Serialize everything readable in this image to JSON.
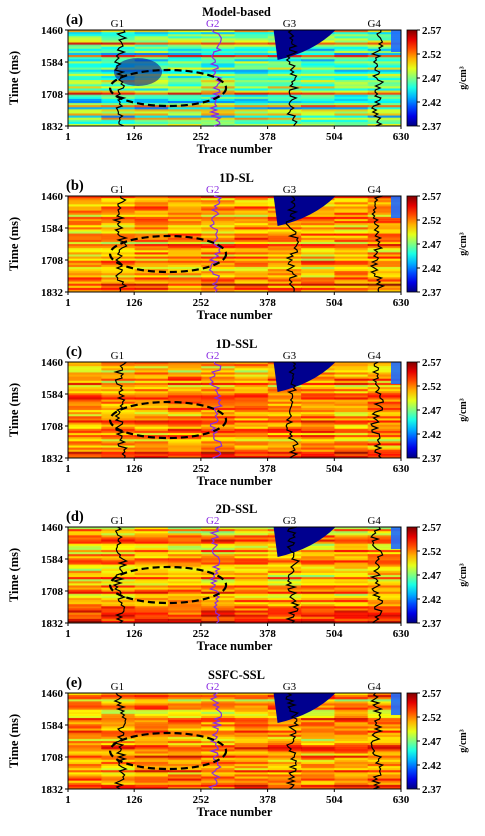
{
  "units": "g/cm³",
  "x_axis": {
    "label": "Trace number",
    "ticks": [
      "1",
      "126",
      "252",
      "378",
      "504",
      "630"
    ],
    "range": [
      1,
      630
    ]
  },
  "y_axis": {
    "label": "Time (ms)",
    "ticks": [
      "1460",
      "1584",
      "1708",
      "1832"
    ],
    "range": [
      1460,
      1832
    ]
  },
  "colorbar": {
    "ticks": [
      "2.57",
      "2.52",
      "2.47",
      "2.42",
      "2.37"
    ],
    "range": [
      2.37,
      2.57
    ],
    "colormap": "jet"
  },
  "wells": [
    {
      "name": "G1",
      "trace": 100,
      "color": "#000000"
    },
    {
      "name": "G2",
      "trace": 280,
      "color": "#8a2be2"
    },
    {
      "name": "G3",
      "trace": 425,
      "color": "#000000"
    },
    {
      "name": "G4",
      "trace": 585,
      "color": "#000000"
    }
  ],
  "panels": [
    {
      "tag": "(a)",
      "title": "Model-based",
      "style": "blue"
    },
    {
      "tag": "(b)",
      "title": "1D-SL",
      "style": "warm"
    },
    {
      "tag": "(c)",
      "title": "1D-SSL",
      "style": "warm"
    },
    {
      "tag": "(d)",
      "title": "2D-SSL",
      "style": "warm"
    },
    {
      "tag": "(e)",
      "title": "SSFC-SSL",
      "style": "warm2"
    }
  ],
  "colors": {
    "dark_blue": "#00008f",
    "cyan": "#00c8ff",
    "yellow": "#ffe600",
    "orange": "#ff8c00",
    "red": "#ff2000",
    "dark_red": "#8b0000"
  }
}
